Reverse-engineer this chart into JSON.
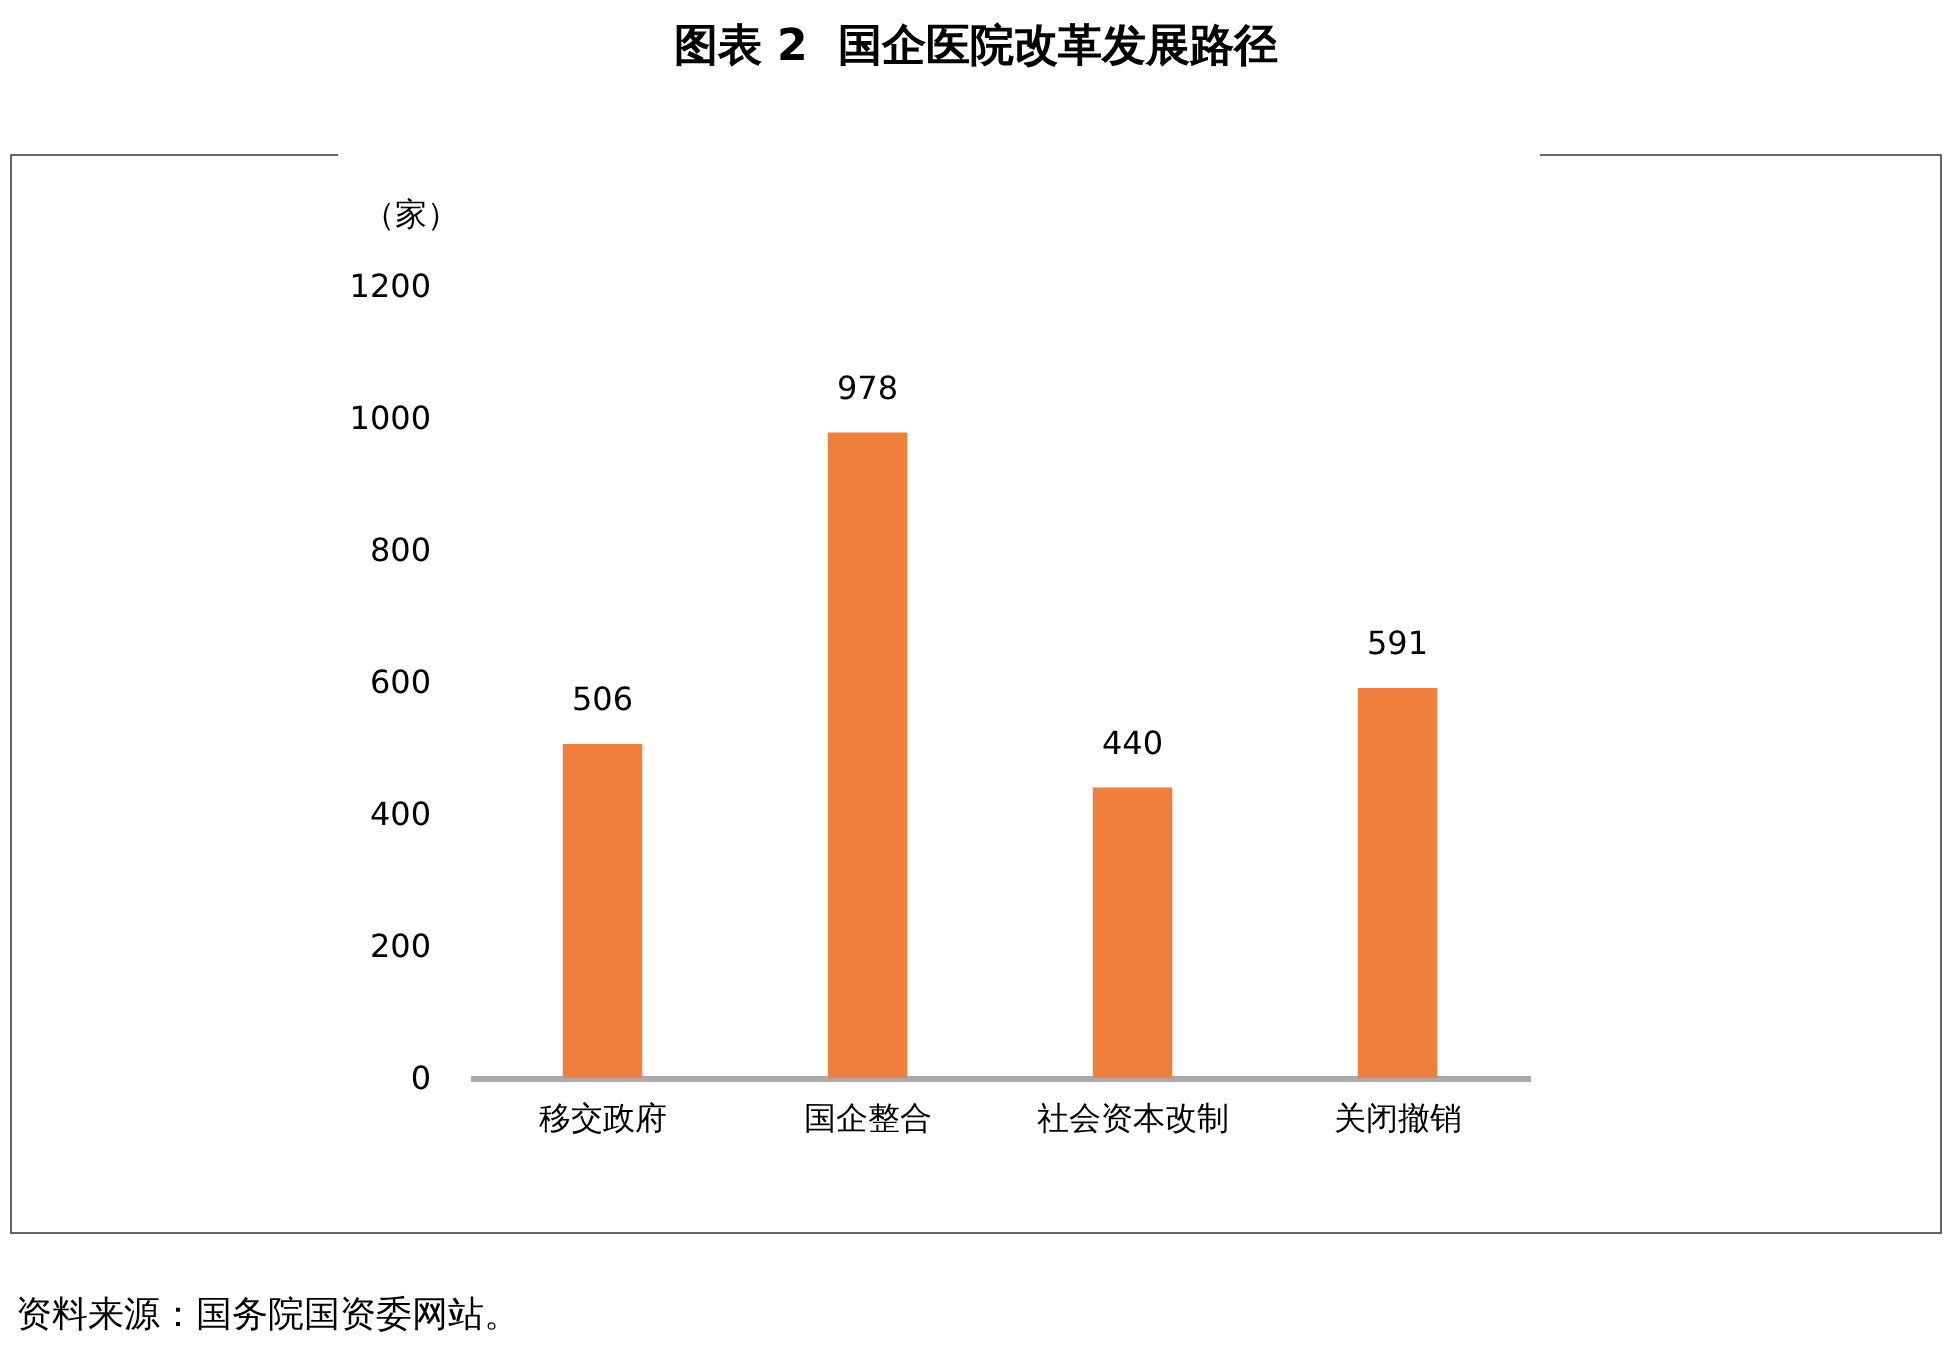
{
  "chart_data": {
    "type": "bar",
    "title": "图表 2  国企医院改革发展路径",
    "ylabel": "（家）",
    "categories": [
      "移交政府",
      "国企整合",
      "社会资本改制",
      "关闭撤销"
    ],
    "values": [
      506,
      978,
      440,
      591
    ],
    "color": "#f07f3c",
    "ylim": [
      0,
      1200
    ],
    "yticks": [
      0,
      200,
      400,
      600,
      800,
      1000,
      1200
    ],
    "grid": false,
    "data_labels": true,
    "annotations": [
      "资料来源：国务院国资委网站。"
    ]
  }
}
